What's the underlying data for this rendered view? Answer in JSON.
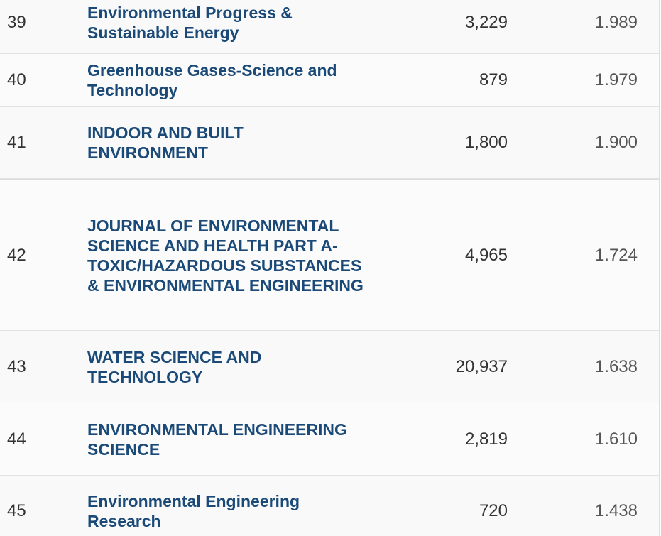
{
  "table": {
    "rows": [
      [
        "39",
        "Environmental Progress & Sustainable Energy",
        "3,229",
        "1.989"
      ],
      [
        "40",
        "Greenhouse Gases-Science and Technology",
        "879",
        "1.979"
      ],
      [
        "41",
        "INDOOR AND BUILT ENVIRONMENT",
        "1,800",
        "1.900"
      ],
      [
        "42",
        "JOURNAL OF ENVIRONMENTAL SCIENCE AND HEALTH PART A-TOXIC/HAZARDOUS SUBSTANCES & ENVIRONMENTAL ENGINEERING",
        "4,965",
        "1.724"
      ],
      [
        "43",
        "WATER SCIENCE AND TECHNOLOGY",
        "20,937",
        "1.638"
      ],
      [
        "44",
        "ENVIRONMENTAL ENGINEERING SCIENCE",
        "2,819",
        "1.610"
      ],
      [
        "45",
        "Environmental Engineering Research",
        "720",
        "1.438"
      ]
    ]
  }
}
